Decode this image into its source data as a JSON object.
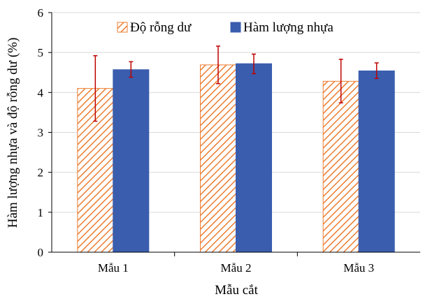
{
  "chart_data": {
    "type": "bar",
    "categories": [
      "Mẫu 1",
      "Mẫu 2",
      "Mẫu 3"
    ],
    "series": [
      {
        "name": "Độ rỗng dư",
        "values": [
          4.1,
          4.69,
          4.28
        ],
        "error_low": [
          3.28,
          4.22,
          3.74
        ],
        "error_high": [
          4.92,
          5.16,
          4.83
        ],
        "fill": "hatched",
        "color": "#ED7D31"
      },
      {
        "name": "Hàm lượng nhựa",
        "values": [
          4.57,
          4.72,
          4.54
        ],
        "error_low": [
          4.38,
          4.47,
          4.35
        ],
        "error_high": [
          4.77,
          4.96,
          4.74
        ],
        "fill": "solid",
        "color": "#3A5DAE"
      }
    ],
    "error_bar_color": "#C00000",
    "xlabel": "Mẫu cắt",
    "ylabel": "Hàm lượng nhựa và độ rỗng dư (%)",
    "ylim": [
      0,
      6
    ],
    "yticks": [
      "0",
      "1",
      "2",
      "3",
      "4",
      "5",
      "6"
    ],
    "grid": true,
    "legend": "top"
  }
}
